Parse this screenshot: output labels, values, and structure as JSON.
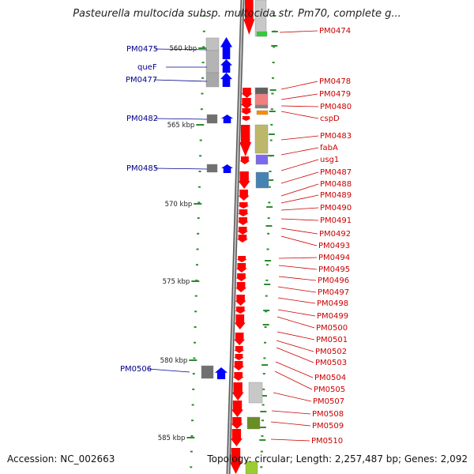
{
  "title": "Pasteurella multocida subsp. multocida str. Pm70, complete g...",
  "footer": {
    "accession": "Accession: NC_002663",
    "topology": "Topology: circular; Length: 2,257,487 bp; Genes: 2,092"
  },
  "colors": {
    "backbone": "#808080",
    "forward_gene": "#0000ff",
    "reverse_gene": "#ff0000",
    "left_label": "#00008b",
    "right_label": "#cc0000",
    "tick": "#2e8b2e"
  },
  "ruler": [
    {
      "label": "560 kbp"
    },
    {
      "label": "565 kbp"
    },
    {
      "label": "570 kbp"
    },
    {
      "label": "575 kbp"
    },
    {
      "label": "580 kbp"
    },
    {
      "label": "585 kbp"
    }
  ],
  "left_labels": [
    {
      "text": "PM0475"
    },
    {
      "text": "queF"
    },
    {
      "text": "PM0477"
    },
    {
      "text": "PM0482"
    },
    {
      "text": "PM0485"
    },
    {
      "text": "PM0506"
    }
  ],
  "right_labels": [
    {
      "text": "PM0474"
    },
    {
      "text": "PM0478"
    },
    {
      "text": "PM0479"
    },
    {
      "text": "PM0480"
    },
    {
      "text": "cspD"
    },
    {
      "text": "PM0483"
    },
    {
      "text": "fabA"
    },
    {
      "text": "usg1"
    },
    {
      "text": "PM0487"
    },
    {
      "text": "PM0488"
    },
    {
      "text": "PM0489"
    },
    {
      "text": "PM0490"
    },
    {
      "text": "PM0491"
    },
    {
      "text": "PM0492"
    },
    {
      "text": "PM0493"
    },
    {
      "text": "PM0494"
    },
    {
      "text": "PM0495"
    },
    {
      "text": "PM0496"
    },
    {
      "text": "PM0497"
    },
    {
      "text": "PM0498"
    },
    {
      "text": "PM0499"
    },
    {
      "text": "PM0500"
    },
    {
      "text": "PM0501"
    },
    {
      "text": "PM0502"
    },
    {
      "text": "PM0503"
    },
    {
      "text": "PM0504"
    },
    {
      "text": "PM0505"
    },
    {
      "text": "PM0507"
    },
    {
      "text": "PM0508"
    },
    {
      "text": "PM0509"
    },
    {
      "text": "PM0510"
    }
  ]
}
